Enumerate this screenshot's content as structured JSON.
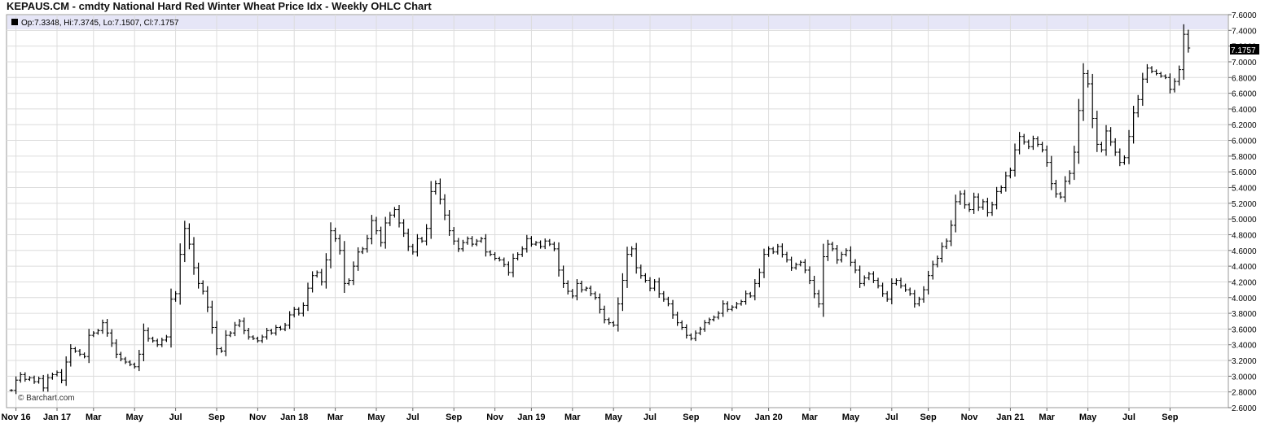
{
  "title": "KEPAUS.CM - cmdty National Hard Red Winter Wheat Price Idx - Weekly OHLC Chart",
  "legend": {
    "text": "Op:7.3348, Hi:7.3745, Lo:7.1507, Cl:7.1757"
  },
  "watermark": "© Barchart.com",
  "last_price_label": "7.1757",
  "colors": {
    "band": "#e6e6f7",
    "grid": "#dcdcdc",
    "bar": "#000000",
    "badge_bg": "#000000",
    "badge_fg": "#ffffff"
  },
  "chart_data": {
    "type": "ohlc",
    "title": "KEPAUS.CM - cmdty National Hard Red Winter Wheat Price Idx - Weekly OHLC Chart",
    "ylim": [
      2.6,
      7.6
    ],
    "y_ticks": [
      "2.6000",
      "2.8000",
      "3.0000",
      "3.2000",
      "3.4000",
      "3.6000",
      "3.8000",
      "4.0000",
      "4.2000",
      "4.4000",
      "4.6000",
      "4.8000",
      "5.0000",
      "5.2000",
      "5.4000",
      "5.6000",
      "5.8000",
      "6.0000",
      "6.2000",
      "6.4000",
      "6.6000",
      "6.8000",
      "7.0000",
      "7.2000",
      "7.4000",
      "7.6000"
    ],
    "x_ticks": [
      {
        "label": "Nov 16",
        "week": 1
      },
      {
        "label": "Jan 17",
        "week": 10
      },
      {
        "label": "Mar",
        "week": 18
      },
      {
        "label": "May",
        "week": 27
      },
      {
        "label": "Jul",
        "week": 36
      },
      {
        "label": "Sep",
        "week": 45
      },
      {
        "label": "Nov",
        "week": 54
      },
      {
        "label": "Jan 18",
        "week": 62
      },
      {
        "label": "Mar",
        "week": 71
      },
      {
        "label": "May",
        "week": 80
      },
      {
        "label": "Jul",
        "week": 88
      },
      {
        "label": "Sep",
        "week": 97
      },
      {
        "label": "Nov",
        "week": 106
      },
      {
        "label": "Jan 19",
        "week": 114
      },
      {
        "label": "Mar",
        "week": 123
      },
      {
        "label": "May",
        "week": 132
      },
      {
        "label": "Jul",
        "week": 140
      },
      {
        "label": "Sep",
        "week": 149
      },
      {
        "label": "Nov",
        "week": 158
      },
      {
        "label": "Jan 20",
        "week": 166
      },
      {
        "label": "Mar",
        "week": 175
      },
      {
        "label": "May",
        "week": 184
      },
      {
        "label": "Jul",
        "week": 193
      },
      {
        "label": "Sep",
        "week": 201
      },
      {
        "label": "Nov",
        "week": 210
      },
      {
        "label": "Jan 21",
        "week": 219
      },
      {
        "label": "Mar",
        "week": 227
      },
      {
        "label": "May",
        "week": 236
      },
      {
        "label": "Jul",
        "week": 245
      },
      {
        "label": "Sep",
        "week": 254
      }
    ],
    "closes": [
      2.82,
      2.95,
      3.02,
      2.96,
      2.98,
      2.93,
      2.97,
      2.85,
      2.98,
      3.02,
      3.05,
      2.95,
      3.18,
      3.35,
      3.32,
      3.28,
      3.25,
      3.52,
      3.55,
      3.58,
      3.68,
      3.55,
      3.42,
      3.28,
      3.22,
      3.18,
      3.15,
      3.12,
      3.28,
      3.58,
      3.48,
      3.45,
      3.4,
      3.46,
      3.5,
      3.98,
      4.05,
      4.55,
      4.88,
      4.68,
      4.38,
      4.18,
      4.08,
      3.88,
      3.62,
      3.35,
      3.32,
      3.52,
      3.55,
      3.65,
      3.7,
      3.58,
      3.5,
      3.48,
      3.45,
      3.5,
      3.58,
      3.55,
      3.62,
      3.6,
      3.65,
      3.78,
      3.85,
      3.8,
      3.9,
      4.12,
      4.28,
      4.32,
      4.2,
      4.48,
      4.85,
      4.75,
      4.6,
      4.18,
      4.22,
      4.4,
      4.58,
      4.62,
      4.75,
      4.98,
      4.85,
      4.7,
      4.95,
      5.05,
      5.12,
      4.95,
      4.82,
      4.65,
      4.58,
      4.75,
      4.72,
      4.88,
      5.35,
      5.45,
      5.25,
      5.05,
      4.85,
      4.72,
      4.62,
      4.7,
      4.75,
      4.68,
      4.72,
      4.75,
      4.58,
      4.55,
      4.5,
      4.48,
      4.42,
      4.32,
      4.5,
      4.55,
      4.62,
      4.75,
      4.68,
      4.7,
      4.65,
      4.72,
      4.68,
      4.62,
      4.35,
      4.18,
      4.08,
      4.02,
      4.18,
      4.1,
      4.12,
      4.05,
      4.0,
      3.85,
      3.72,
      3.68,
      3.65,
      3.92,
      4.22,
      4.55,
      4.62,
      4.38,
      4.28,
      4.22,
      4.12,
      4.2,
      4.05,
      3.98,
      3.92,
      3.78,
      3.68,
      3.62,
      3.52,
      3.48,
      3.55,
      3.6,
      3.68,
      3.72,
      3.75,
      3.8,
      3.92,
      3.85,
      3.88,
      3.92,
      3.95,
      4.05,
      4.02,
      4.18,
      4.32,
      4.55,
      4.62,
      4.58,
      4.65,
      4.55,
      4.48,
      4.38,
      4.42,
      4.45,
      4.35,
      4.22,
      4.05,
      3.92,
      4.52,
      4.68,
      4.62,
      4.48,
      4.55,
      4.6,
      4.45,
      4.35,
      4.18,
      4.25,
      4.3,
      4.22,
      4.15,
      4.05,
      3.98,
      4.18,
      4.22,
      4.15,
      4.1,
      4.05,
      3.92,
      3.98,
      4.1,
      4.28,
      4.42,
      4.5,
      4.65,
      4.72,
      4.92,
      5.22,
      5.32,
      5.18,
      5.12,
      5.28,
      5.15,
      5.22,
      5.08,
      5.18,
      5.35,
      5.4,
      5.55,
      5.62,
      5.88,
      6.05,
      5.98,
      5.92,
      6.02,
      5.95,
      5.88,
      5.72,
      5.45,
      5.32,
      5.28,
      5.48,
      5.58,
      5.85,
      6.38,
      6.85,
      6.72,
      6.28,
      5.95,
      5.88,
      6.12,
      5.98,
      5.85,
      5.72,
      5.78,
      6.05,
      6.35,
      6.52,
      6.78,
      6.92,
      6.88,
      6.85,
      6.82,
      6.8,
      6.65,
      6.75,
      6.9,
      7.35,
      7.1757
    ]
  }
}
